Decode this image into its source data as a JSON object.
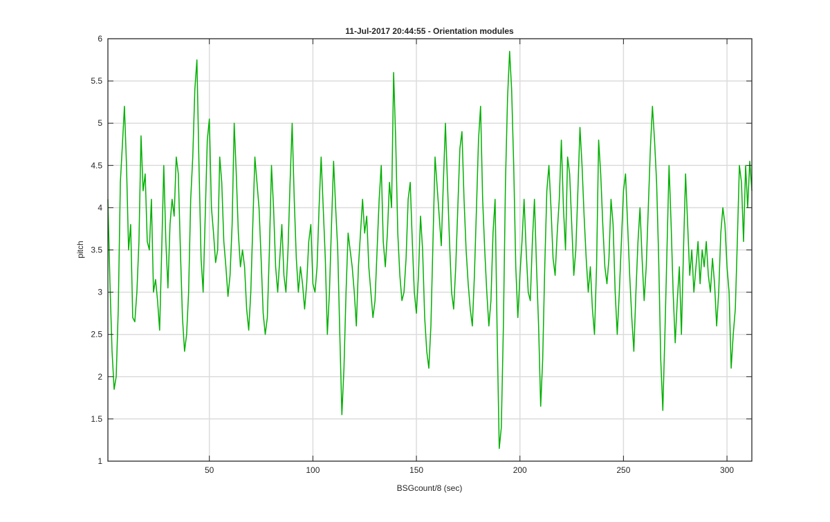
{
  "chart_data": {
    "type": "line",
    "title": "11-Jul-2017 20:44:55 - Orientation modules",
    "xlabel": "BSGcount/8 (sec)",
    "ylabel": "pitch",
    "xlim": [
      1,
      312
    ],
    "ylim": [
      1,
      6
    ],
    "xticks": [
      50,
      100,
      150,
      200,
      250,
      300
    ],
    "yticks": [
      1,
      1.5,
      2,
      2.5,
      3,
      3.5,
      4,
      4.5,
      5,
      5.5,
      6
    ],
    "grid": true,
    "series": [
      {
        "name": "",
        "color": "#00b000",
        "points": [
          [
            1,
            4.1
          ],
          [
            2,
            3.1
          ],
          [
            3,
            2.3
          ],
          [
            4,
            1.85
          ],
          [
            5,
            2.0
          ],
          [
            6,
            2.8
          ],
          [
            7,
            4.3
          ],
          [
            8,
            4.75
          ],
          [
            9,
            5.2
          ],
          [
            10,
            4.5
          ],
          [
            11,
            3.5
          ],
          [
            12,
            3.8
          ],
          [
            13,
            2.7
          ],
          [
            14,
            2.65
          ],
          [
            15,
            3.0
          ],
          [
            16,
            3.6
          ],
          [
            17,
            4.85
          ],
          [
            18,
            4.2
          ],
          [
            19,
            4.4
          ],
          [
            20,
            3.6
          ],
          [
            21,
            3.5
          ],
          [
            22,
            4.1
          ],
          [
            23,
            3.0
          ],
          [
            24,
            3.15
          ],
          [
            25,
            2.9
          ],
          [
            26,
            2.55
          ],
          [
            27,
            3.5
          ],
          [
            28,
            4.5
          ],
          [
            29,
            3.6
          ],
          [
            30,
            3.05
          ],
          [
            31,
            3.8
          ],
          [
            32,
            4.1
          ],
          [
            33,
            3.9
          ],
          [
            34,
            4.6
          ],
          [
            35,
            4.4
          ],
          [
            36,
            3.5
          ],
          [
            37,
            2.7
          ],
          [
            38,
            2.3
          ],
          [
            39,
            2.5
          ],
          [
            40,
            3.0
          ],
          [
            41,
            4.1
          ],
          [
            42,
            4.6
          ],
          [
            43,
            5.4
          ],
          [
            44,
            5.75
          ],
          [
            45,
            4.5
          ],
          [
            46,
            3.4
          ],
          [
            47,
            3.0
          ],
          [
            48,
            3.9
          ],
          [
            49,
            4.8
          ],
          [
            50,
            5.05
          ],
          [
            51,
            4.0
          ],
          [
            52,
            3.7
          ],
          [
            53,
            3.35
          ],
          [
            54,
            3.5
          ],
          [
            55,
            4.6
          ],
          [
            56,
            4.3
          ],
          [
            57,
            3.6
          ],
          [
            58,
            3.3
          ],
          [
            59,
            2.95
          ],
          [
            60,
            3.2
          ],
          [
            61,
            3.8
          ],
          [
            62,
            5.0
          ],
          [
            63,
            4.4
          ],
          [
            64,
            3.7
          ],
          [
            65,
            3.3
          ],
          [
            66,
            3.5
          ],
          [
            67,
            3.3
          ],
          [
            68,
            2.8
          ],
          [
            69,
            2.55
          ],
          [
            70,
            3.0
          ],
          [
            71,
            3.8
          ],
          [
            72,
            4.6
          ],
          [
            73,
            4.3
          ],
          [
            74,
            4.0
          ],
          [
            75,
            3.4
          ],
          [
            76,
            2.75
          ],
          [
            77,
            2.5
          ],
          [
            78,
            2.7
          ],
          [
            79,
            3.5
          ],
          [
            80,
            4.5
          ],
          [
            81,
            4.0
          ],
          [
            82,
            3.3
          ],
          [
            83,
            3.0
          ],
          [
            84,
            3.4
          ],
          [
            85,
            3.8
          ],
          [
            86,
            3.2
          ],
          [
            87,
            3.0
          ],
          [
            88,
            3.5
          ],
          [
            89,
            4.3
          ],
          [
            90,
            5.0
          ],
          [
            91,
            4.1
          ],
          [
            92,
            3.4
          ],
          [
            93,
            3.0
          ],
          [
            94,
            3.3
          ],
          [
            95,
            3.1
          ],
          [
            96,
            2.8
          ],
          [
            97,
            3.1
          ],
          [
            98,
            3.6
          ],
          [
            99,
            3.8
          ],
          [
            100,
            3.1
          ],
          [
            101,
            3.0
          ],
          [
            102,
            3.3
          ],
          [
            103,
            4.0
          ],
          [
            104,
            4.6
          ],
          [
            105,
            4.0
          ],
          [
            106,
            3.4
          ],
          [
            107,
            2.5
          ],
          [
            108,
            3.0
          ],
          [
            109,
            3.8
          ],
          [
            110,
            4.55
          ],
          [
            111,
            4.0
          ],
          [
            112,
            3.5
          ],
          [
            113,
            2.5
          ],
          [
            114,
            1.55
          ],
          [
            115,
            2.1
          ],
          [
            116,
            3.0
          ],
          [
            117,
            3.7
          ],
          [
            118,
            3.5
          ],
          [
            119,
            3.3
          ],
          [
            120,
            3.0
          ],
          [
            121,
            2.6
          ],
          [
            122,
            3.3
          ],
          [
            123,
            3.7
          ],
          [
            124,
            4.1
          ],
          [
            125,
            3.7
          ],
          [
            126,
            3.9
          ],
          [
            127,
            3.3
          ],
          [
            128,
            3.0
          ],
          [
            129,
            2.7
          ],
          [
            130,
            2.9
          ],
          [
            131,
            3.5
          ],
          [
            132,
            4.1
          ],
          [
            133,
            4.5
          ],
          [
            134,
            3.6
          ],
          [
            135,
            3.3
          ],
          [
            136,
            3.7
          ],
          [
            137,
            4.3
          ],
          [
            138,
            4.0
          ],
          [
            139,
            5.6
          ],
          [
            140,
            4.8
          ],
          [
            141,
            3.7
          ],
          [
            142,
            3.2
          ],
          [
            143,
            2.9
          ],
          [
            144,
            3.0
          ],
          [
            145,
            3.4
          ],
          [
            146,
            4.1
          ],
          [
            147,
            4.3
          ],
          [
            148,
            3.6
          ],
          [
            149,
            3.0
          ],
          [
            150,
            2.75
          ],
          [
            151,
            3.2
          ],
          [
            152,
            3.9
          ],
          [
            153,
            3.5
          ],
          [
            154,
            2.7
          ],
          [
            155,
            2.3
          ],
          [
            156,
            2.1
          ],
          [
            157,
            2.6
          ],
          [
            158,
            3.6
          ],
          [
            159,
            4.6
          ],
          [
            160,
            4.25
          ],
          [
            161,
            3.9
          ],
          [
            162,
            3.55
          ],
          [
            163,
            4.3
          ],
          [
            164,
            5.0
          ],
          [
            165,
            4.3
          ],
          [
            166,
            3.6
          ],
          [
            167,
            3.0
          ],
          [
            168,
            2.8
          ],
          [
            169,
            3.3
          ],
          [
            170,
            4.0
          ],
          [
            171,
            4.7
          ],
          [
            172,
            4.9
          ],
          [
            173,
            4.1
          ],
          [
            174,
            3.5
          ],
          [
            175,
            3.1
          ],
          [
            176,
            2.8
          ],
          [
            177,
            2.6
          ],
          [
            178,
            3.2
          ],
          [
            179,
            4.0
          ],
          [
            180,
            4.8
          ],
          [
            181,
            5.2
          ],
          [
            182,
            4.1
          ],
          [
            183,
            3.5
          ],
          [
            184,
            3.0
          ],
          [
            185,
            2.6
          ],
          [
            186,
            2.9
          ],
          [
            187,
            3.7
          ],
          [
            188,
            4.1
          ],
          [
            189,
            2.5
          ],
          [
            190,
            1.15
          ],
          [
            191,
            1.4
          ],
          [
            192,
            2.6
          ],
          [
            193,
            4.3
          ],
          [
            194,
            5.3
          ],
          [
            195,
            5.85
          ],
          [
            196,
            5.4
          ],
          [
            197,
            4.5
          ],
          [
            198,
            3.3
          ],
          [
            199,
            2.7
          ],
          [
            200,
            3.2
          ],
          [
            201,
            3.6
          ],
          [
            202,
            4.1
          ],
          [
            203,
            3.5
          ],
          [
            204,
            3.0
          ],
          [
            205,
            2.9
          ],
          [
            206,
            3.6
          ],
          [
            207,
            4.1
          ],
          [
            208,
            3.3
          ],
          [
            209,
            2.6
          ],
          [
            210,
            1.65
          ],
          [
            211,
            2.2
          ],
          [
            212,
            3.3
          ],
          [
            213,
            4.2
          ],
          [
            214,
            4.5
          ],
          [
            215,
            4.0
          ],
          [
            216,
            3.4
          ],
          [
            217,
            3.2
          ],
          [
            218,
            3.7
          ],
          [
            219,
            4.1
          ],
          [
            220,
            4.8
          ],
          [
            221,
            4.0
          ],
          [
            222,
            3.5
          ],
          [
            223,
            4.6
          ],
          [
            224,
            4.4
          ],
          [
            225,
            3.8
          ],
          [
            226,
            3.2
          ],
          [
            227,
            3.5
          ],
          [
            228,
            4.2
          ],
          [
            229,
            4.95
          ],
          [
            230,
            4.5
          ],
          [
            231,
            3.9
          ],
          [
            232,
            3.4
          ],
          [
            233,
            3.0
          ],
          [
            234,
            3.3
          ],
          [
            235,
            2.8
          ],
          [
            236,
            2.5
          ],
          [
            237,
            3.3
          ],
          [
            238,
            4.8
          ],
          [
            239,
            4.4
          ],
          [
            240,
            3.8
          ],
          [
            241,
            3.3
          ],
          [
            242,
            3.1
          ],
          [
            243,
            3.4
          ],
          [
            244,
            4.1
          ],
          [
            245,
            3.8
          ],
          [
            246,
            3.0
          ],
          [
            247,
            2.5
          ],
          [
            248,
            3.0
          ],
          [
            249,
            3.6
          ],
          [
            250,
            4.2
          ],
          [
            251,
            4.4
          ],
          [
            252,
            3.8
          ],
          [
            253,
            3.2
          ],
          [
            254,
            2.7
          ],
          [
            255,
            2.3
          ],
          [
            256,
            3.0
          ],
          [
            257,
            3.6
          ],
          [
            258,
            4.0
          ],
          [
            259,
            3.4
          ],
          [
            260,
            2.9
          ],
          [
            261,
            3.3
          ],
          [
            262,
            4.0
          ],
          [
            263,
            4.7
          ],
          [
            264,
            5.2
          ],
          [
            265,
            4.8
          ],
          [
            266,
            4.3
          ],
          [
            267,
            3.4
          ],
          [
            268,
            2.2
          ],
          [
            269,
            1.6
          ],
          [
            270,
            2.5
          ],
          [
            271,
            3.5
          ],
          [
            272,
            4.5
          ],
          [
            273,
            3.8
          ],
          [
            274,
            3.0
          ],
          [
            275,
            2.4
          ],
          [
            276,
            2.9
          ],
          [
            277,
            3.3
          ],
          [
            278,
            2.5
          ],
          [
            279,
            3.5
          ],
          [
            280,
            4.4
          ],
          [
            281,
            3.8
          ],
          [
            282,
            3.2
          ],
          [
            283,
            3.5
          ],
          [
            284,
            3.0
          ],
          [
            285,
            3.3
          ],
          [
            286,
            3.6
          ],
          [
            287,
            3.1
          ],
          [
            288,
            3.5
          ],
          [
            289,
            3.3
          ],
          [
            290,
            3.6
          ],
          [
            291,
            3.2
          ],
          [
            292,
            3.0
          ],
          [
            293,
            3.4
          ],
          [
            294,
            3.1
          ],
          [
            295,
            2.6
          ],
          [
            296,
            3.0
          ],
          [
            297,
            3.7
          ],
          [
            298,
            4.0
          ],
          [
            299,
            3.8
          ],
          [
            300,
            3.3
          ],
          [
            301,
            3.0
          ],
          [
            302,
            2.1
          ],
          [
            303,
            2.5
          ],
          [
            304,
            2.8
          ],
          [
            305,
            3.6
          ],
          [
            306,
            4.5
          ],
          [
            307,
            4.3
          ],
          [
            308,
            3.6
          ],
          [
            309,
            4.5
          ],
          [
            310,
            4.0
          ],
          [
            311,
            4.55
          ],
          [
            312,
            4.2
          ]
        ]
      }
    ]
  }
}
